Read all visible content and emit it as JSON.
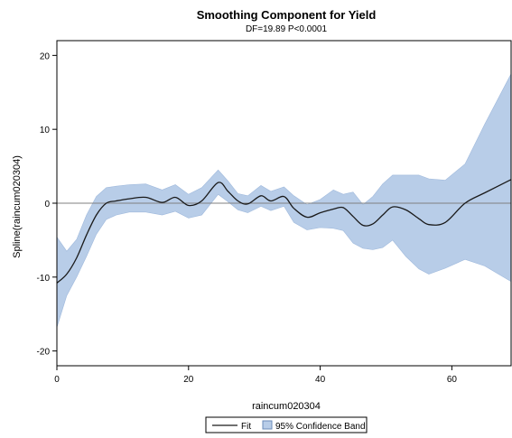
{
  "chart_data": {
    "type": "line",
    "title": "Smoothing Component for Yield",
    "subtitle": "DF=19.89  P<0.0001",
    "xlabel": "raincum020304",
    "ylabel": "Spline(raincum020304)",
    "xlim": [
      0,
      69
    ],
    "ylim": [
      -22,
      22
    ],
    "x_ticks": [
      0,
      20,
      40,
      60
    ],
    "y_ticks": [
      -20,
      -10,
      0,
      10,
      20
    ],
    "reference_line_y": 0,
    "grid": false,
    "legend_position": "bottom-center",
    "colors": {
      "fit": "#1a1a1a",
      "band": "#b8cde8",
      "band_edge": "#9fb9dc",
      "reference": "#808080"
    },
    "series": [
      {
        "name": "Fit",
        "kind": "line",
        "x": [
          0,
          1.5,
          3,
          4.5,
          6,
          7.5,
          9,
          11,
          13.5,
          16,
          18,
          20,
          22,
          24.5,
          26,
          27.5,
          29,
          31,
          32.5,
          34.5,
          36,
          38,
          40,
          42,
          43.5,
          45,
          46.5,
          48,
          49.5,
          51,
          53,
          55,
          56.5,
          59,
          62,
          65,
          69
        ],
        "y": [
          -10.8,
          -9.6,
          -7.4,
          -4.3,
          -1.6,
          0.0,
          0.3,
          0.6,
          0.8,
          0.1,
          0.8,
          -0.3,
          0.3,
          2.8,
          1.6,
          0.3,
          -0.1,
          1.0,
          0.3,
          0.9,
          -0.7,
          -1.9,
          -1.3,
          -0.8,
          -0.6,
          -1.8,
          -3.0,
          -2.8,
          -1.6,
          -0.5,
          -0.9,
          -2.1,
          -2.9,
          -2.6,
          0.0,
          1.4,
          3.2
        ]
      },
      {
        "name": "95% Confidence Band",
        "kind": "band",
        "x": [
          0,
          1.5,
          3,
          4.5,
          6,
          7.5,
          9,
          11,
          13.5,
          16,
          18,
          20,
          22,
          24.5,
          26,
          27.5,
          29,
          31,
          32.5,
          34.5,
          36,
          38,
          40,
          42,
          43.5,
          45,
          46.5,
          48,
          49.5,
          51,
          53,
          55,
          56.5,
          59,
          62,
          65,
          69
        ],
        "lower": [
          -16.8,
          -12.5,
          -10.0,
          -7.2,
          -4.2,
          -2.2,
          -1.6,
          -1.2,
          -1.2,
          -1.6,
          -1.1,
          -2.0,
          -1.6,
          1.2,
          0.2,
          -0.9,
          -1.3,
          -0.4,
          -1.0,
          -0.4,
          -2.6,
          -3.6,
          -3.3,
          -3.4,
          -3.7,
          -5.4,
          -6.1,
          -6.3,
          -6.0,
          -5.0,
          -7.2,
          -8.9,
          -9.6,
          -8.8,
          -7.6,
          -8.5,
          -10.6
        ],
        "upper": [
          -4.6,
          -6.5,
          -4.9,
          -1.6,
          0.9,
          2.1,
          2.3,
          2.5,
          2.6,
          1.8,
          2.5,
          1.2,
          2.1,
          4.5,
          3.0,
          1.3,
          1.0,
          2.4,
          1.6,
          2.2,
          1.0,
          -0.2,
          0.5,
          1.8,
          1.2,
          1.5,
          -0.2,
          0.9,
          2.6,
          3.8,
          3.8,
          3.8,
          3.3,
          3.1,
          5.3,
          10.7,
          17.5
        ]
      }
    ]
  }
}
